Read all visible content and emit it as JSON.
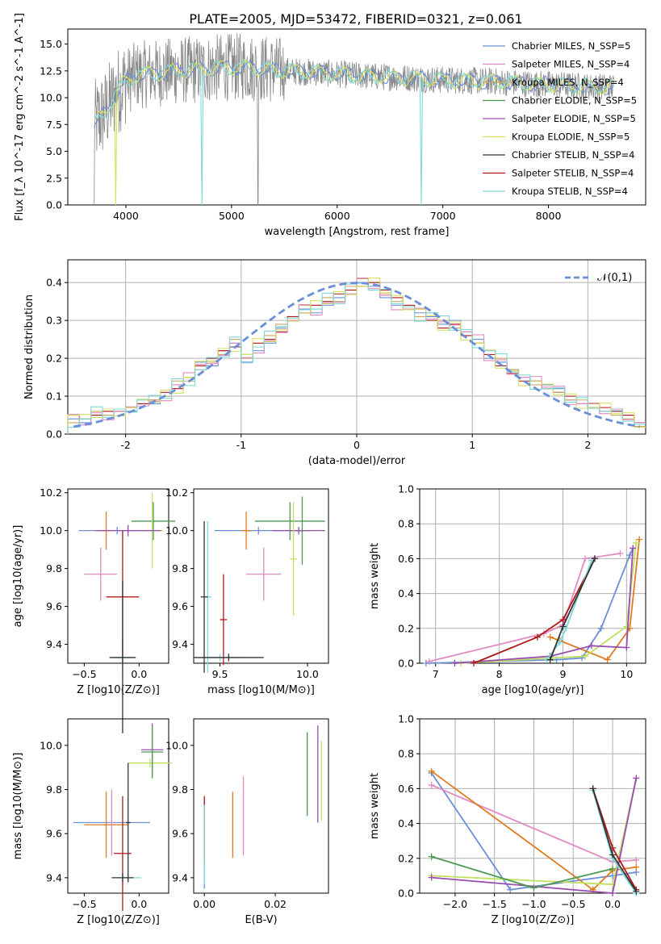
{
  "title": "PLATE=2005, MJD=53472, FIBERID=0321, z=0.061",
  "colors": {
    "chabrier_miles": "#6a8fd8",
    "salpeter_miles": "#e28ac3",
    "kroupa_miles": "#c8a860",
    "chabrier_elodie": "#4c9a50",
    "salpeter_elodie": "#9a4cb0",
    "kroupa_elodie": "#d8e060",
    "chabrier_stelib": "#333333",
    "salpeter_stelib": "#b01818",
    "kroupa_stelib": "#7fd8d8",
    "data": "#888888",
    "gauss": "#6a8fd8",
    "orange": "#e07b20",
    "green": "#bfe060"
  },
  "chart_data": [
    {
      "type": "line",
      "id": "spectrum",
      "xlabel": "wavelength [Angstrom, rest frame]",
      "ylabel": "Flux [f_λ 10^-17 erg cm^-2 s^-1 A^-1]",
      "xlim": [
        3450,
        8920
      ],
      "ylim": [
        0,
        16.4
      ],
      "xticks": [
        4000,
        5000,
        6000,
        7000,
        8000
      ],
      "yticks": [
        0.0,
        2.5,
        5.0,
        7.5,
        10.0,
        12.5,
        15.0
      ],
      "ytick_labels": [
        "0.0",
        "2.5",
        "5.0",
        "7.5",
        "10.0",
        "12.5",
        "15.0"
      ],
      "legend": [
        {
          "label": "Chabrier MILES, N_SSP=5",
          "color": "#6a8fd8"
        },
        {
          "label": "Salpeter MILES, N_SSP=4",
          "color": "#e28ac3"
        },
        {
          "label": "Kroupa MILES, N_SSP=4",
          "color": "#c8a860"
        },
        {
          "label": "Chabrier ELODIE, N_SSP=5",
          "color": "#4c9a50"
        },
        {
          "label": "Salpeter ELODIE, N_SSP=5",
          "color": "#9a4cb0"
        },
        {
          "label": "Kroupa ELODIE, N_SSP=5",
          "color": "#d8e060"
        },
        {
          "label": "Chabrier STELIB, N_SSP=4",
          "color": "#333333"
        },
        {
          "label": "Salpeter STELIB, N_SSP=4",
          "color": "#b01818"
        },
        {
          "label": "Kroupa STELIB, N_SSP=4",
          "color": "#7fd8d8"
        }
      ],
      "continuum": {
        "x": [
          3700,
          3800,
          3900,
          4000,
          4100,
          4300,
          4500,
          4700,
          4900,
          5100,
          5300,
          5500,
          5700,
          6000,
          6300,
          6600,
          6900,
          7200,
          7500,
          7800,
          8100,
          8400,
          8600
        ],
        "y": [
          7.5,
          8.6,
          10.3,
          11.6,
          12.1,
          12.3,
          12.5,
          12.6,
          12.8,
          12.9,
          12.7,
          12.5,
          12.4,
          12.2,
          12.0,
          11.9,
          11.7,
          11.6,
          11.5,
          11.3,
          11.2,
          11.0,
          11.0
        ]
      }
    },
    {
      "type": "line",
      "id": "residuals",
      "xlabel": "(data-model)/error",
      "ylabel": "Normed distribution",
      "xlim": [
        -2.5,
        2.5
      ],
      "ylim": [
        0,
        0.46
      ],
      "xticks": [
        -2,
        -1,
        0,
        1,
        2
      ],
      "yticks": [
        0.0,
        0.1,
        0.2,
        0.3,
        0.4
      ],
      "ytick_labels": [
        "0.0",
        "0.1",
        "0.2",
        "0.3",
        "0.4"
      ],
      "legend": "𝒩(0,1)",
      "bins": [
        -2.5,
        -2.4,
        -2.3,
        -2.2,
        -2.1,
        -2.0,
        -1.9,
        -1.8,
        -1.7,
        -1.6,
        -1.5,
        -1.4,
        -1.3,
        -1.2,
        -1.1,
        -1.0,
        -0.9,
        -0.8,
        -0.7,
        -0.6,
        -0.5,
        -0.4,
        -0.3,
        -0.2,
        -0.1,
        0.0,
        0.1,
        0.2,
        0.3,
        0.4,
        0.5,
        0.6,
        0.7,
        0.8,
        0.9,
        1.0,
        1.1,
        1.2,
        1.3,
        1.4,
        1.5,
        1.6,
        1.7,
        1.8,
        1.9,
        2.0,
        2.1,
        2.2,
        2.3,
        2.4,
        2.5
      ],
      "series_heights": [
        [
          0.04,
          0.03,
          0.05,
          0.05,
          0.06,
          0.06,
          0.08,
          0.08,
          0.1,
          0.13,
          0.15,
          0.19,
          0.18,
          0.22,
          0.24,
          0.19,
          0.22,
          0.24,
          0.28,
          0.3,
          0.33,
          0.32,
          0.34,
          0.36,
          0.37,
          0.4,
          0.39,
          0.36,
          0.34,
          0.33,
          0.32,
          0.31,
          0.29,
          0.3,
          0.27,
          0.25,
          0.2,
          0.19,
          0.17,
          0.15,
          0.14,
          0.13,
          0.12,
          0.09,
          0.08,
          0.07,
          0.06,
          0.06,
          0.05,
          0.03
        ],
        [
          0.05,
          0.04,
          0.05,
          0.06,
          0.06,
          0.07,
          0.08,
          0.09,
          0.11,
          0.12,
          0.15,
          0.18,
          0.2,
          0.22,
          0.23,
          0.21,
          0.24,
          0.25,
          0.27,
          0.31,
          0.32,
          0.34,
          0.35,
          0.37,
          0.38,
          0.39,
          0.4,
          0.38,
          0.36,
          0.34,
          0.33,
          0.3,
          0.28,
          0.29,
          0.26,
          0.24,
          0.21,
          0.18,
          0.16,
          0.14,
          0.14,
          0.12,
          0.11,
          0.1,
          0.08,
          0.07,
          0.07,
          0.06,
          0.05,
          0.03
        ],
        [
          0.03,
          0.04,
          0.06,
          0.05,
          0.06,
          0.07,
          0.09,
          0.09,
          0.1,
          0.14,
          0.14,
          0.17,
          0.19,
          0.21,
          0.25,
          0.2,
          0.23,
          0.26,
          0.29,
          0.3,
          0.34,
          0.33,
          0.36,
          0.35,
          0.39,
          0.41,
          0.38,
          0.37,
          0.35,
          0.33,
          0.31,
          0.32,
          0.3,
          0.28,
          0.27,
          0.24,
          0.22,
          0.2,
          0.17,
          0.15,
          0.13,
          0.12,
          0.11,
          0.09,
          0.09,
          0.08,
          0.06,
          0.05,
          0.04,
          0.02
        ]
      ]
    },
    {
      "type": "scatter",
      "id": "age_vs_Z",
      "xlabel": "Z [log10(Z/Z⊙)]",
      "ylabel": "age  [log10(age/yr)]",
      "xlim": [
        -0.65,
        0.27
      ],
      "ylim": [
        9.3,
        10.22
      ],
      "xticks": [
        -0.5,
        0.0
      ],
      "xtick_labels": [
        "−0.5",
        "0.0"
      ],
      "yticks": [
        9.4,
        9.6,
        9.8,
        10.0,
        10.2
      ],
      "ytick_labels": [
        "9.4",
        "9.6",
        "9.8",
        "10.0",
        "10.2"
      ]
    },
    {
      "type": "scatter",
      "id": "age_vs_mass",
      "xlabel": "mass [log10(M/M⊙)]",
      "xlim": [
        9.35,
        10.12
      ],
      "ylim": [
        9.3,
        10.22
      ],
      "xticks": [
        9.5,
        10.0
      ],
      "xtick_labels": [
        "9.5",
        "10.0"
      ],
      "yticks": [
        9.4,
        9.6,
        9.8,
        10.0,
        10.2
      ],
      "ytick_labels": [
        "9.4",
        "9.6",
        "9.8",
        "10.0",
        "10.2"
      ]
    },
    {
      "type": "line",
      "id": "weight_vs_age",
      "xlabel": "age  [log10(age/yr)]",
      "ylabel": "mass weight",
      "xlim": [
        6.75,
        10.3
      ],
      "ylim": [
        0,
        1
      ],
      "xticks": [
        7,
        8,
        9,
        10
      ],
      "xtick_labels": [
        "7",
        "8",
        "9",
        "10"
      ],
      "yticks": [
        0.0,
        0.2,
        0.4,
        0.6,
        0.8,
        1.0
      ],
      "ytick_labels": [
        "0.0",
        "0.2",
        "0.4",
        "0.6",
        "0.8",
        "1.0"
      ],
      "series": [
        {
          "x": [
            6.85,
            8.9,
            9.3,
            9.6,
            10.05,
            10.1
          ],
          "y": [
            0.0,
            0.02,
            0.03,
            0.2,
            0.62,
            0.66
          ],
          "color": "#6a8fd8"
        },
        {
          "x": [
            6.9,
            8.7,
            9.0,
            9.35,
            9.9
          ],
          "y": [
            0.01,
            0.17,
            0.22,
            0.6,
            0.63
          ],
          "color": "#e28ac3"
        },
        {
          "x": [
            8.8,
            8.95,
            9.7,
            10.05,
            10.2
          ],
          "y": [
            0.15,
            0.13,
            0.02,
            0.2,
            0.71
          ],
          "color": "#e07b20"
        },
        {
          "x": [
            7.4,
            8.85,
            9.35,
            10.0,
            10.15
          ],
          "y": [
            0.0,
            0.03,
            0.04,
            0.21,
            0.69
          ],
          "color": "#bfe060"
        },
        {
          "x": [
            7.3,
            8.8,
            9.45,
            10.0,
            10.1
          ],
          "y": [
            0.0,
            0.04,
            0.1,
            0.09,
            0.66
          ],
          "color": "#9a4cb0"
        },
        {
          "x": [
            7.6,
            8.6,
            9.0,
            9.5
          ],
          "y": [
            0.0,
            0.15,
            0.25,
            0.6
          ],
          "color": "#b01818"
        },
        {
          "x": [
            8.75,
            8.95,
            9.05,
            9.45
          ],
          "y": [
            0.02,
            0.12,
            0.2,
            0.59
          ],
          "color": "#7fd8d8"
        },
        {
          "x": [
            8.8,
            9.0,
            9.5
          ],
          "y": [
            0.02,
            0.21,
            0.6
          ],
          "color": "#333333"
        }
      ]
    },
    {
      "type": "scatter",
      "id": "mass_vs_Z",
      "xlabel": "Z [log10(Z/Z⊙)]",
      "ylabel": "mass [log10(M/M⊙)]",
      "xlim": [
        -0.65,
        0.27
      ],
      "ylim": [
        9.33,
        10.12
      ],
      "xticks": [
        -0.5,
        0.0
      ],
      "xtick_labels": [
        "−0.5",
        "0.0"
      ],
      "yticks": [
        9.4,
        9.6,
        9.8,
        10.0
      ],
      "ytick_labels": [
        "9.4",
        "9.6",
        "9.8",
        "10.0"
      ]
    },
    {
      "type": "scatter",
      "id": "mass_vs_EBV",
      "xlabel": "E(B-V)",
      "xlim": [
        -0.003,
        0.035
      ],
      "ylim": [
        9.33,
        10.12
      ],
      "xticks": [
        0.0,
        0.02
      ],
      "xtick_labels": [
        "0.00",
        "0.02"
      ],
      "yticks": [
        9.4,
        9.6,
        9.8,
        10.0
      ],
      "ytick_labels": [
        "9.4",
        "9.6",
        "9.8",
        "10.0"
      ]
    },
    {
      "type": "line",
      "id": "weight_vs_Z",
      "xlabel": "Z [log10(Z/Z⊙)]",
      "ylabel": "mass weight",
      "xlim": [
        -2.45,
        0.42
      ],
      "ylim": [
        0,
        1
      ],
      "xticks": [
        -2.0,
        -1.5,
        -1.0,
        -0.5,
        0.0
      ],
      "xtick_labels": [
        "−2.0",
        "−1.5",
        "−1.0",
        "−0.5",
        "0.0"
      ],
      "yticks": [
        0.0,
        0.2,
        0.4,
        0.6,
        0.8,
        1.0
      ],
      "ytick_labels": [
        "0.0",
        "0.2",
        "0.4",
        "0.6",
        "0.8",
        "1.0"
      ],
      "series": [
        {
          "x": [
            -2.3,
            -1.3,
            0.0,
            0.3
          ],
          "y": [
            0.69,
            0.02,
            0.1,
            0.12
          ],
          "color": "#6a8fd8"
        },
        {
          "x": [
            -2.3,
            0.0,
            0.3
          ],
          "y": [
            0.62,
            0.18,
            0.19
          ],
          "color": "#e28ac3"
        },
        {
          "x": [
            -2.3,
            -0.25,
            0.0,
            0.3
          ],
          "y": [
            0.7,
            0.02,
            0.13,
            0.15
          ],
          "color": "#e07b20"
        },
        {
          "x": [
            -2.3,
            0.0,
            0.3
          ],
          "y": [
            0.1,
            0.05,
            0.66
          ],
          "color": "#bfe060"
        },
        {
          "x": [
            -2.3,
            0.0,
            0.3
          ],
          "y": [
            0.09,
            0.0,
            0.66
          ],
          "color": "#9a4cb0"
        },
        {
          "x": [
            -0.25,
            0.0,
            0.3
          ],
          "y": [
            0.6,
            0.26,
            0.02
          ],
          "color": "#b01818"
        },
        {
          "x": [
            -0.25,
            0.0,
            0.3
          ],
          "y": [
            0.59,
            0.2,
            0.0
          ],
          "color": "#7fd8d8"
        },
        {
          "x": [
            -0.25,
            0.0,
            0.3
          ],
          "y": [
            0.6,
            0.22,
            0.01
          ],
          "color": "#333333"
        },
        {
          "x": [
            -2.3,
            -1.0,
            0.0
          ],
          "y": [
            0.21,
            0.03,
            0.14
          ],
          "color": "#4c9a50"
        }
      ]
    }
  ]
}
